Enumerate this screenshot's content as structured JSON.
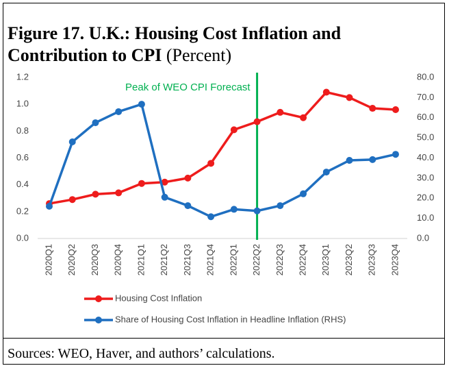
{
  "chart_data": {
    "type": "line",
    "title": "Figure 17. U.K.: Housing Cost Inflation and Contribution to CPI",
    "subtitle": "(Percent)",
    "note": "Sources: WEO, Haver, and authors’ calculations.",
    "annotation": {
      "text": "Peak of WEO CPI Forecast",
      "category": "2022Q2",
      "color": "#00b050"
    },
    "categories": [
      "2020Q1",
      "2020Q2",
      "2020Q3",
      "2020Q4",
      "2021Q1",
      "2021Q2",
      "2021Q3",
      "2021Q4",
      "2022Q1",
      "2022Q2",
      "2022Q3",
      "2022Q4",
      "2023Q1",
      "2023Q2",
      "2023Q3",
      "2023Q4"
    ],
    "series": [
      {
        "name": "Housing Cost Inflation",
        "color": "#ee1c1c",
        "axis": "y",
        "values": [
          0.26,
          0.29,
          0.33,
          0.34,
          0.41,
          0.42,
          0.45,
          0.56,
          0.81,
          0.87,
          0.94,
          0.9,
          1.09,
          1.05,
          0.97,
          0.96
        ]
      },
      {
        "name": "Share of Housing Cost Inflation in Headline Inflation (RHS)",
        "color": "#1f6fc0",
        "axis": "y2",
        "values": [
          16,
          48,
          57.5,
          63,
          66.7,
          20.5,
          16.3,
          10.8,
          14.5,
          13.7,
          16.3,
          22.2,
          33,
          38.8,
          39.2,
          41.8
        ]
      }
    ],
    "ylim": [
      0,
      1.2
    ],
    "yticks": [
      {
        "value": 0,
        "label": "0.0"
      },
      0.2,
      0.4,
      0.6,
      0.8,
      {
        "value": 1,
        "label": "1.0"
      },
      1.2
    ],
    "y2lim": [
      0,
      80
    ],
    "y2ticks": [
      {
        "value": 0,
        "label": "0.0"
      },
      {
        "value": 10,
        "label": "10.0"
      },
      {
        "value": 20,
        "label": "20.0"
      },
      {
        "value": 30,
        "label": "30.0"
      },
      {
        "value": 40,
        "label": "40.0"
      },
      {
        "value": 50,
        "label": "50.0"
      },
      {
        "value": 60,
        "label": "60.0"
      },
      {
        "value": 70,
        "label": "70.0"
      },
      {
        "value": 80,
        "label": "80.0"
      }
    ],
    "legend": "bottom"
  }
}
